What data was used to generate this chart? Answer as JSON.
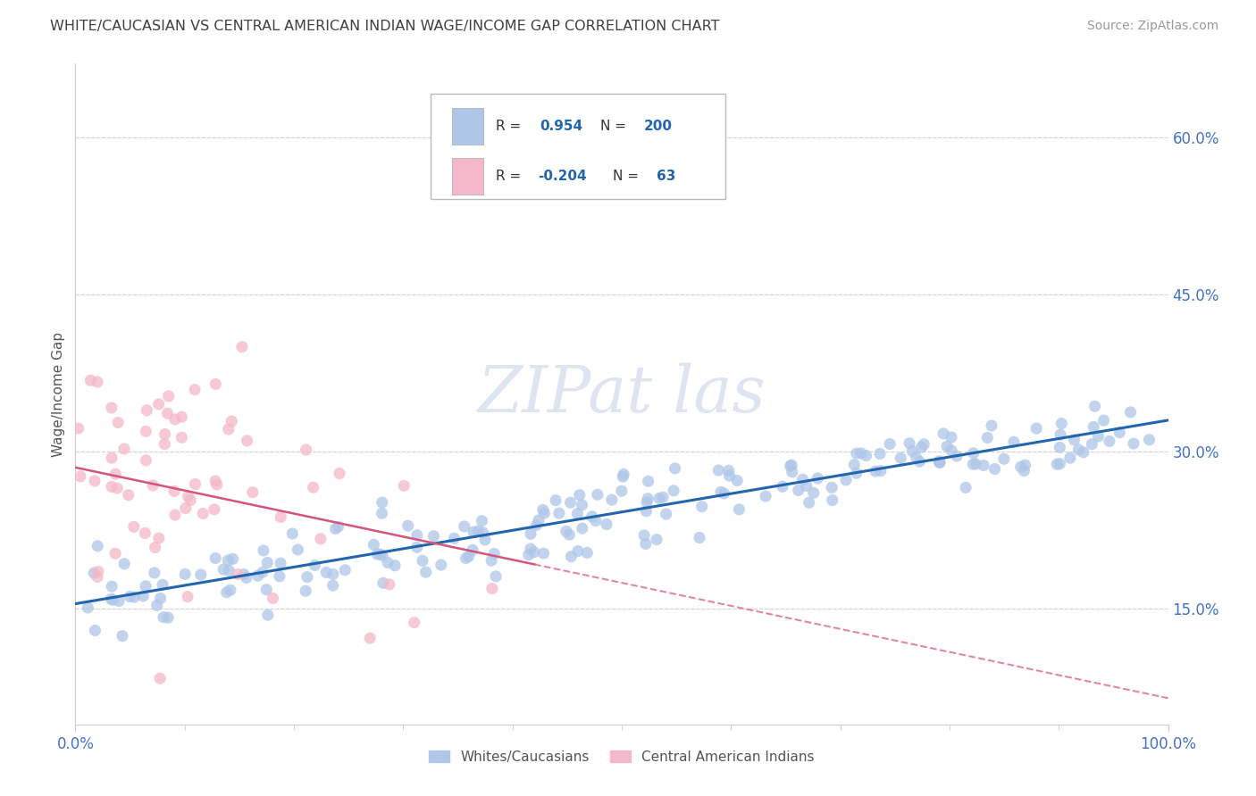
{
  "title": "WHITE/CAUCASIAN VS CENTRAL AMERICAN INDIAN WAGE/INCOME GAP CORRELATION CHART",
  "source": "Source: ZipAtlas.com",
  "ylabel": "Wage/Income Gap",
  "watermark": "ZIPat las",
  "blue_R": 0.954,
  "blue_N": 200,
  "pink_R": -0.204,
  "pink_N": 63,
  "right_yticks": [
    "15.0%",
    "30.0%",
    "45.0%",
    "60.0%"
  ],
  "right_ytick_vals": [
    0.15,
    0.3,
    0.45,
    0.6
  ],
  "blue_color": "#aec6e8",
  "pink_color": "#f4b8c8",
  "blue_line_color": "#2166ac",
  "pink_line_color": "#d4547a",
  "legend_blue_label": "Whites/Caucasians",
  "legend_pink_label": "Central American Indians",
  "background_color": "#ffffff",
  "grid_color": "#cccccc",
  "title_color": "#404040",
  "source_color": "#999999",
  "tick_color": "#4472c4",
  "slope_blue": 0.175,
  "intercept_blue": 0.155,
  "slope_pink": -0.22,
  "intercept_pink": 0.285
}
